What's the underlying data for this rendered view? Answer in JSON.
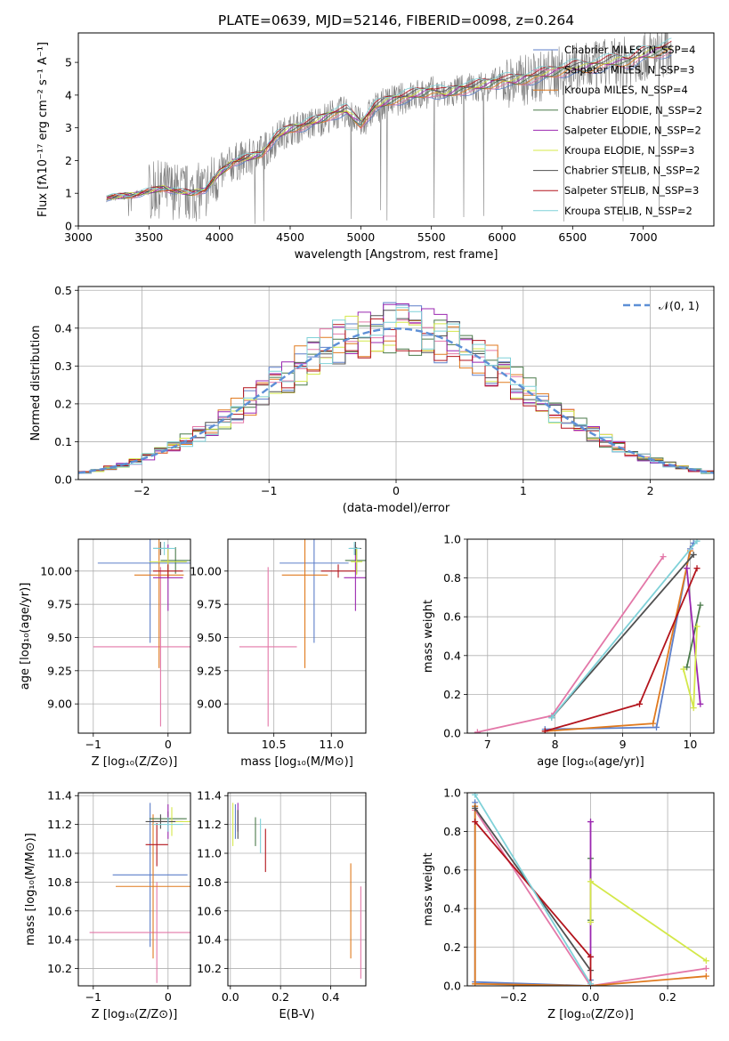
{
  "chart_data": [
    {
      "id": "spectrum",
      "type": "line",
      "title": "PLATE=0639, MJD=52146, FIBERID=0098, z=0.264",
      "xlabel": "wavelength [Angstrom, rest frame]",
      "ylabel": "Flux [fλ10⁻¹⁷ erg cm⁻² s⁻¹ A⁻¹]",
      "xlim": [
        3000,
        7500
      ],
      "ylim": [
        0,
        5.9
      ],
      "grid": false,
      "xticks": [
        3000,
        3500,
        4000,
        4500,
        5000,
        5500,
        6000,
        6500,
        7000
      ],
      "yticks": [
        0,
        1,
        2,
        3,
        4,
        5
      ],
      "legend_position": "upper-right",
      "observed": {
        "color": "#808080",
        "x": [
          3200,
          3300,
          3400,
          3500,
          3600,
          3700,
          3800,
          3900,
          4000,
          4100,
          4200,
          4300,
          4400,
          4500,
          4600,
          4700,
          4800,
          4900,
          5000,
          5100,
          5200,
          5300,
          5400,
          5500,
          5600,
          5700,
          5800,
          5900,
          6000,
          6100,
          6200,
          6300,
          6400,
          6500,
          6600,
          6700,
          6800,
          6900,
          7000,
          7100,
          7200
        ],
        "y": [
          0.85,
          0.9,
          0.95,
          1.05,
          1.15,
          1.05,
          1.0,
          1.1,
          1.6,
          1.95,
          2.05,
          2.2,
          2.7,
          2.95,
          3.05,
          3.2,
          3.4,
          3.5,
          3.1,
          3.6,
          3.8,
          3.9,
          4.0,
          4.1,
          4.0,
          4.15,
          4.2,
          4.3,
          4.4,
          4.4,
          4.5,
          4.6,
          4.7,
          4.8,
          4.8,
          4.9,
          5.0,
          5.0,
          5.2,
          5.3,
          5.4
        ]
      },
      "series": [
        {
          "name": "Chabrier MILES, N_SSP=4",
          "color": "#5d7fc9",
          "style": "line"
        },
        {
          "name": "Salpeter MILES, N_SSP=3",
          "color": "#e377a8",
          "style": "line"
        },
        {
          "name": "Kroupa MILES, N_SSP=4",
          "color": "#e07a1f",
          "style": "line"
        },
        {
          "name": "Chabrier ELODIE, N_SSP=2",
          "color": "#4a7a4a",
          "style": "line"
        },
        {
          "name": "Salpeter ELODIE, N_SSP=2",
          "color": "#9b27b0",
          "style": "line"
        },
        {
          "name": "Kroupa ELODIE, N_SSP=3",
          "color": "#d4e84a",
          "style": "line"
        },
        {
          "name": "Chabrier STELIB, N_SSP=2",
          "color": "#505050",
          "style": "line"
        },
        {
          "name": "Salpeter STELIB, N_SSP=3",
          "color": "#b3141c",
          "style": "line"
        },
        {
          "name": "Kroupa STELIB, N_SSP=2",
          "color": "#7fd1d8",
          "style": "line"
        }
      ]
    },
    {
      "id": "residuals",
      "type": "step",
      "xlabel": "(data-model)/error",
      "ylabel": "Normed distribution",
      "xlim": [
        -2.5,
        2.5
      ],
      "ylim": [
        0,
        0.51
      ],
      "grid": true,
      "xticks": [
        -2,
        -1,
        0,
        1,
        2
      ],
      "yticks": [
        0.0,
        0.1,
        0.2,
        0.3,
        0.4,
        0.5
      ],
      "legend_position": "upper-right",
      "legend": "𝒩(0, 1)",
      "gaussian": {
        "mean": 0,
        "sigma": 1,
        "color": "#5d8fd6"
      },
      "bins": {
        "start": -2.5,
        "width": 0.1,
        "count": 50
      }
    },
    {
      "id": "age-vs-z",
      "type": "errorbar",
      "xlabel": "Z [log₁₀(Z/Z⊙)]",
      "ylabel": "age  [log₁₀(age/yr)]",
      "xlim": [
        -1.2,
        0.3
      ],
      "ylim": [
        8.78,
        10.24
      ],
      "grid": true,
      "xticks": [
        -1,
        0
      ],
      "yticks": [
        9.0,
        9.25,
        9.5,
        9.75,
        10.0
      ],
      "points": [
        {
          "x": -0.24,
          "xerr": 0.7,
          "y": 10.06,
          "yerr": 0.6,
          "color": "#5d7fc9"
        },
        {
          "x": -0.1,
          "xerr": 0.9,
          "y": 9.43,
          "yerr": 0.6,
          "color": "#e377a8"
        },
        {
          "x": -0.12,
          "xerr": 0.33,
          "y": 9.97,
          "yerr": 0.7,
          "color": "#e07a1f"
        },
        {
          "x": 0.1,
          "xerr": 0.2,
          "y": 10.08,
          "yerr": 0.1,
          "color": "#4a7a4a"
        },
        {
          "x": 0.0,
          "xerr": 0.2,
          "y": 9.95,
          "yerr": 0.25,
          "color": "#9b27b0"
        },
        {
          "x": 0.0,
          "xerr": 0.25,
          "y": 10.07,
          "yerr": 0.1,
          "color": "#d4e84a"
        },
        {
          "x": -0.1,
          "xerr": 0.1,
          "y": 10.17,
          "yerr": 0.05,
          "color": "#505050"
        },
        {
          "x": 0.0,
          "xerr": 0.2,
          "y": 10.0,
          "yerr": 0.05,
          "color": "#b3141c"
        },
        {
          "x": -0.05,
          "xerr": 0.15,
          "y": 10.17,
          "yerr": 0.05,
          "color": "#7fd1d8"
        }
      ]
    },
    {
      "id": "age-vs-mass",
      "type": "errorbar",
      "xlabel": "mass [log₁₀(M/M⊙)]",
      "ylabel": "",
      "xlim": [
        10.1,
        11.3
      ],
      "ylim": [
        8.78,
        10.24
      ],
      "grid": true,
      "xticks": [
        10.5,
        11.0
      ],
      "yticks": [
        9.0,
        9.25,
        9.5,
        9.75,
        10.0
      ],
      "points": [
        {
          "x": 10.85,
          "xerr": 0.3,
          "y": 10.06,
          "yerr": 0.6,
          "color": "#5d7fc9"
        },
        {
          "x": 10.45,
          "xerr": 0.25,
          "y": 9.43,
          "yerr": 0.6,
          "color": "#e377a8"
        },
        {
          "x": 10.77,
          "xerr": 0.2,
          "y": 9.97,
          "yerr": 0.7,
          "color": "#e07a1f"
        },
        {
          "x": 11.22,
          "xerr": 0.1,
          "y": 10.08,
          "yerr": 0.1,
          "color": "#4a7a4a"
        },
        {
          "x": 11.21,
          "xerr": 0.1,
          "y": 9.95,
          "yerr": 0.25,
          "color": "#9b27b0"
        },
        {
          "x": 11.22,
          "xerr": 0.05,
          "y": 10.07,
          "yerr": 0.1,
          "color": "#d4e84a"
        },
        {
          "x": 11.21,
          "xerr": 0.05,
          "y": 10.17,
          "yerr": 0.05,
          "color": "#505050"
        },
        {
          "x": 11.06,
          "xerr": 0.15,
          "y": 10.0,
          "yerr": 0.05,
          "color": "#b3141c"
        },
        {
          "x": 11.2,
          "xerr": 0.05,
          "y": 10.17,
          "yerr": 0.05,
          "color": "#7fd1d8"
        }
      ]
    },
    {
      "id": "weight-vs-age",
      "type": "line",
      "xlabel": "age  [log₁₀(age/yr)]",
      "ylabel": "mass weight",
      "xlim": [
        6.7,
        10.35
      ],
      "ylim": [
        0,
        1
      ],
      "grid": true,
      "xticks": [
        7,
        8,
        9,
        10
      ],
      "yticks": [
        0.0,
        0.2,
        0.4,
        0.6,
        0.8,
        1.0
      ],
      "series": [
        {
          "color": "#5d7fc9",
          "x": [
            7.85,
            9.5,
            10.0,
            10.05
          ],
          "y": [
            0.02,
            0.03,
            0.95,
            0.98
          ]
        },
        {
          "color": "#e377a8",
          "x": [
            6.85,
            7.95,
            9.6
          ],
          "y": [
            0.005,
            0.09,
            0.91
          ]
        },
        {
          "color": "#e07a1f",
          "x": [
            7.85,
            9.45,
            10.0
          ],
          "y": [
            0.01,
            0.05,
            0.94
          ]
        },
        {
          "color": "#4a7a4a",
          "x": [
            9.95,
            10.15
          ],
          "y": [
            0.34,
            0.66
          ]
        },
        {
          "color": "#9b27b0",
          "x": [
            9.95,
            10.15
          ],
          "y": [
            0.85,
            0.15
          ]
        },
        {
          "color": "#d4e84a",
          "x": [
            9.9,
            10.05,
            10.1
          ],
          "y": [
            0.33,
            0.13,
            0.55
          ]
        },
        {
          "color": "#505050",
          "x": [
            7.95,
            10.05
          ],
          "y": [
            0.08,
            0.92
          ]
        },
        {
          "color": "#b3141c",
          "x": [
            7.85,
            9.25,
            10.1
          ],
          "y": [
            0.01,
            0.15,
            0.85
          ]
        },
        {
          "color": "#7fd1d8",
          "x": [
            7.95,
            10.1
          ],
          "y": [
            0.08,
            0.99
          ]
        }
      ]
    },
    {
      "id": "mass-vs-z",
      "type": "errorbar",
      "xlabel": "Z [log₁₀(Z/Z⊙)]",
      "ylabel": "mass [log₁₀(M/M⊙)]",
      "xlim": [
        -1.2,
        0.3
      ],
      "ylim": [
        10.08,
        11.42
      ],
      "grid": true,
      "xticks": [
        -1,
        0
      ],
      "yticks": [
        10.2,
        10.4,
        10.6,
        10.8,
        11.0,
        11.2,
        11.4
      ],
      "points": [
        {
          "x": -0.24,
          "xerr": 0.5,
          "y": 10.85,
          "yerr": 0.5,
          "color": "#5d7fc9"
        },
        {
          "x": -0.15,
          "xerr": 0.9,
          "y": 10.45,
          "yerr": 0.35,
          "color": "#e377a8"
        },
        {
          "x": -0.2,
          "xerr": 0.5,
          "y": 10.77,
          "yerr": 0.5,
          "color": "#e07a1f"
        },
        {
          "x": 0.0,
          "xerr": 0.25,
          "y": 11.24,
          "yerr": 0.05,
          "color": "#4a7a4a"
        },
        {
          "x": 0.0,
          "xerr": 0.2,
          "y": 11.22,
          "yerr": 0.12,
          "color": "#9b27b0"
        },
        {
          "x": 0.05,
          "xerr": 0.25,
          "y": 11.22,
          "yerr": 0.1,
          "color": "#d4e84a"
        },
        {
          "x": -0.1,
          "xerr": 0.2,
          "y": 11.22,
          "yerr": 0.05,
          "color": "#505050"
        },
        {
          "x": -0.15,
          "xerr": 0.15,
          "y": 11.06,
          "yerr": 0.15,
          "color": "#b3141c"
        },
        {
          "x": 0.0,
          "xerr": 0.2,
          "y": 11.2,
          "yerr": 0.05,
          "color": "#7fd1d8"
        }
      ]
    },
    {
      "id": "mass-vs-ebv",
      "type": "errorbar",
      "xlabel": "E(B-V)",
      "ylabel": "",
      "xlim": [
        -0.01,
        0.54
      ],
      "ylim": [
        10.08,
        11.42
      ],
      "grid": true,
      "xticks": [
        0.0,
        0.2,
        0.4
      ],
      "yticks": [
        10.2,
        10.4,
        10.6,
        10.8,
        11.0,
        11.2,
        11.4
      ],
      "points": [
        {
          "x": 0.02,
          "y": 11.22,
          "yerr": 0.12,
          "color": "#5d7fc9"
        },
        {
          "x": 0.52,
          "y": 10.45,
          "yerr": 0.32,
          "color": "#e377a8"
        },
        {
          "x": 0.48,
          "y": 10.6,
          "yerr": 0.33,
          "color": "#e07a1f"
        },
        {
          "x": 0.1,
          "y": 11.15,
          "yerr": 0.1,
          "color": "#4a7a4a"
        },
        {
          "x": 0.03,
          "y": 11.25,
          "yerr": 0.1,
          "color": "#9b27b0"
        },
        {
          "x": 0.01,
          "y": 11.2,
          "yerr": 0.15,
          "color": "#d4e84a"
        },
        {
          "x": 0.03,
          "y": 11.2,
          "yerr": 0.1,
          "color": "#505050"
        },
        {
          "x": 0.14,
          "y": 11.02,
          "yerr": 0.15,
          "color": "#b3141c"
        },
        {
          "x": 0.12,
          "y": 11.12,
          "yerr": 0.12,
          "color": "#7fd1d8"
        }
      ]
    },
    {
      "id": "weight-vs-z",
      "type": "line",
      "xlabel": "Z [log₁₀(Z/Z⊙)]",
      "ylabel": "mass weight",
      "xlim": [
        -0.32,
        0.32
      ],
      "ylim": [
        0,
        1
      ],
      "grid": true,
      "xticks": [
        -0.2,
        0.0,
        0.2
      ],
      "yticks": [
        0.0,
        0.2,
        0.4,
        0.6,
        0.8,
        1.0
      ],
      "series": [
        {
          "color": "#5d7fc9",
          "x": [
            -0.3,
            -0.3,
            0.0,
            0.0
          ],
          "y": [
            0.95,
            0.02,
            0.0,
            0.03
          ]
        },
        {
          "color": "#e377a8",
          "x": [
            0.3,
            0.0,
            -0.3
          ],
          "y": [
            0.09,
            0.0,
            0.91
          ]
        },
        {
          "color": "#e07a1f",
          "x": [
            -0.3,
            -0.3,
            0.0,
            0.3
          ],
          "y": [
            0.93,
            0.01,
            0.0,
            0.05
          ]
        },
        {
          "color": "#4a7a4a",
          "x": [
            0.0,
            0.0
          ],
          "y": [
            0.66,
            0.34
          ]
        },
        {
          "color": "#9b27b0",
          "x": [
            0.0,
            0.0
          ],
          "y": [
            0.85,
            0.15
          ]
        },
        {
          "color": "#d4e84a",
          "x": [
            0.0,
            0.0,
            0.3
          ],
          "y": [
            0.33,
            0.54,
            0.13
          ]
        },
        {
          "color": "#505050",
          "x": [
            -0.3,
            0.0
          ],
          "y": [
            0.92,
            0.08
          ]
        },
        {
          "color": "#b3141c",
          "x": [
            -0.3,
            0.0,
            0.0
          ],
          "y": [
            0.85,
            0.15,
            0.0
          ]
        },
        {
          "color": "#7fd1d8",
          "x": [
            -0.3,
            0.0
          ],
          "y": [
            0.99,
            0.01
          ]
        }
      ]
    }
  ]
}
